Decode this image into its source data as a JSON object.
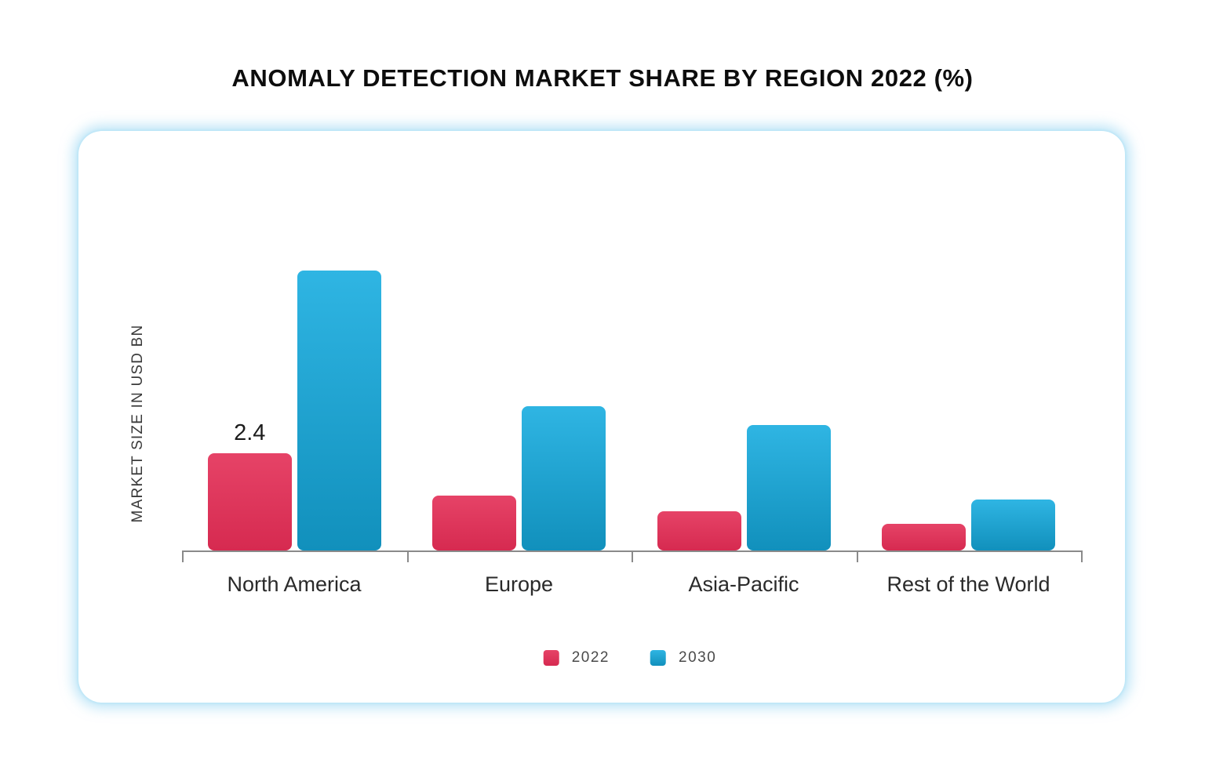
{
  "title": "ANOMALY DETECTION MARKET SHARE BY REGION 2022 (%)",
  "chart_data": {
    "type": "bar",
    "title": "ANOMALY DETECTION MARKET SHARE BY REGION 2022 (%)",
    "ylabel": "MARKET SIZE IN USD BN",
    "xlabel": "",
    "categories": [
      "North America",
      "Europe",
      "Asia-Pacific",
      "Rest of the World"
    ],
    "series": [
      {
        "name": "2022",
        "color": "#DE3458",
        "gradient_top": "#E64367",
        "gradient_bottom": "#D62A50",
        "values": [
          2.4,
          1.35,
          0.97,
          0.66
        ],
        "labels": [
          "2.4",
          "",
          "",
          ""
        ]
      },
      {
        "name": "2030",
        "color": "#1FA8D6",
        "gradient_top": "#2FB5E3",
        "gradient_bottom": "#1190BC",
        "values": [
          6.9,
          3.55,
          3.1,
          1.26
        ],
        "labels": [
          "",
          "",
          "",
          ""
        ]
      }
    ],
    "ylim": [
      0,
      7.3
    ],
    "grid": false,
    "legend_position": "bottom",
    "axis_color": "#8a8a8a"
  }
}
